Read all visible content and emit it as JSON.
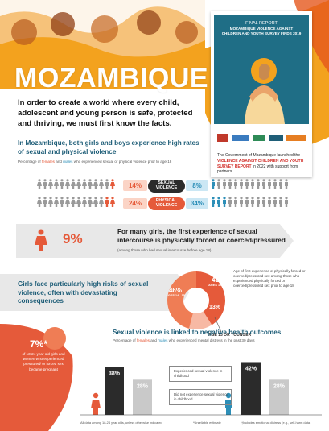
{
  "header": {
    "title": "MOZAMBIQUE",
    "colors": {
      "orange": "#f3a21e",
      "coral": "#e55a3a",
      "blue": "#1f5e78",
      "light_blue": "#2d8fb8"
    }
  },
  "cover": {
    "final_report": "FINAL REPORT",
    "title": "MOZAMBIQUE VIOLENCE AGAINST CHILDREN AND YOUTH SURVEY FINDS 2019",
    "text_before": "The Government of Mozambique launched the",
    "text_highlight": "VIOLENCE AGAINST CHILDREN AND YOUTH SURVEY REPORT",
    "text_after": "in 2022 with support from partners."
  },
  "intro": {
    "text": "In order to create a world where every child, adolescent and young person is safe, protected and thriving, we must first know the facts."
  },
  "violence_section": {
    "heading": "In Mozambique, both girls and boys experience high rates of sexual and physical violence",
    "caption_prefix": "Percentage of",
    "caption_females": "females",
    "caption_and": "and",
    "caption_males": "males",
    "caption_suffix": "who experienced sexual or physical violence prior to age 18",
    "rows": [
      {
        "label_line1": "SEXUAL",
        "label_line2": "VIOLENCE",
        "female_pct": "14%",
        "male_pct": "8%",
        "female_value": 14,
        "male_value": 8
      },
      {
        "label_line1": "PHYSICAL",
        "label_line2": "VIOLENCE",
        "female_pct": "24%",
        "male_pct": "34%",
        "female_value": 24,
        "male_value": 34
      }
    ]
  },
  "first_experience": {
    "pct": "9%",
    "text": "For many girls, the first experience of sexual intercourse is physically forced or coerced/pressured",
    "caption": "(among those who had sexual intercourse before age 18)"
  },
  "girls_section": {
    "heading": "Girls face particularly high risks of sexual violence, often with devastating consequences",
    "donut_note": "Age of first experience of physically forced or coerced/pressured sex among those who experienced physically forced or coerced/pressured sex prior to age 18",
    "age13_label": "AGE 13 OR YOUNGER",
    "donut": [
      {
        "pct": "41%",
        "label": "AGES 16 - 17",
        "value": 41,
        "color": "#e55a3a"
      },
      {
        "pct": "13%",
        "label": "",
        "value": 13,
        "color": "#f7b9a4"
      },
      {
        "pct": "46%",
        "label": "AGES 14 - 15",
        "value": 46,
        "color": "#ef7d55"
      }
    ]
  },
  "pregnant_box": {
    "pct": "7%*",
    "text": "of 13-24 year old girls and women who experienced pressured/ or forced sex became pregnant"
  },
  "outcomes": {
    "title": "Sexual violence is linked to negative health outcomes",
    "caption_prefix": "Percentage of",
    "caption_females": "females",
    "caption_and": "and",
    "caption_males": "males",
    "caption_suffix": "who experienced mental distress in the past 30 days",
    "legend_experienced": "Experienced sexual violence in childhood",
    "legend_not": "Did not experience sexual violence in childhood",
    "footer_left": "All data among 18-24 year olds, unless otherwise indicated",
    "footer_mid": "*Unreliable estimate",
    "footer_right": "†Includes emotional distress (e.g., self-harm data)"
  },
  "chart_data": {
    "type": "bar",
    "title": "Sexual violence is linked to negative health outcomes",
    "categories": [
      "Females",
      "Males"
    ],
    "series": [
      {
        "name": "Experienced sexual violence in childhood",
        "values": [
          38,
          42
        ]
      },
      {
        "name": "Did not experience sexual violence in childhood",
        "values": [
          28,
          28
        ]
      }
    ],
    "value_labels": [
      [
        "38%",
        "28%"
      ],
      [
        "42%",
        "28%"
      ]
    ],
    "ylim": [
      0,
      50
    ]
  }
}
